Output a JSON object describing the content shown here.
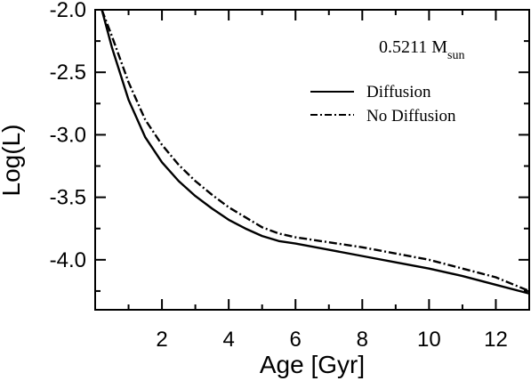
{
  "chart_data": {
    "type": "line",
    "xlabel": "Age [Gyr]",
    "ylabel": "Log(L)",
    "xlim": [
      0,
      13
    ],
    "ylim": [
      -4.4,
      -2.0
    ],
    "x_ticks": [
      2,
      4,
      6,
      8,
      10,
      12
    ],
    "y_ticks": [
      -2.0,
      -2.5,
      -3.0,
      -3.5,
      -4.0
    ],
    "x_tick_labels": [
      "2",
      "4",
      "6",
      "8",
      "10",
      "12"
    ],
    "y_tick_labels": [
      "-2.0",
      "-2.5",
      "-3.0",
      "-3.5",
      "-4.0"
    ],
    "annotation": {
      "mass": "0.5211 M",
      "subscript": "sun"
    },
    "legend_position": "top-right",
    "grid": false,
    "series": [
      {
        "name": "Diffusion",
        "style": "solid",
        "color": "#000000",
        "x": [
          0.2,
          0.5,
          1.0,
          1.5,
          2.0,
          2.5,
          3.0,
          3.5,
          4.0,
          4.5,
          5.0,
          5.5,
          6.0,
          7.0,
          8.0,
          9.0,
          10.0,
          11.0,
          12.0,
          13.0
        ],
        "y": [
          -2.0,
          -2.3,
          -2.72,
          -3.02,
          -3.22,
          -3.37,
          -3.49,
          -3.59,
          -3.68,
          -3.75,
          -3.81,
          -3.85,
          -3.87,
          -3.92,
          -3.97,
          -4.02,
          -4.07,
          -4.13,
          -4.2,
          -4.27
        ]
      },
      {
        "name": "No Diffusion",
        "style": "dashdot",
        "color": "#000000",
        "x": [
          0.2,
          0.5,
          1.0,
          1.5,
          2.0,
          2.5,
          3.0,
          3.5,
          4.0,
          4.5,
          5.0,
          5.5,
          6.0,
          7.0,
          8.0,
          9.0,
          10.0,
          11.0,
          12.0,
          13.0
        ],
        "y": [
          -2.0,
          -2.21,
          -2.58,
          -2.88,
          -3.08,
          -3.24,
          -3.37,
          -3.48,
          -3.58,
          -3.66,
          -3.74,
          -3.79,
          -3.82,
          -3.86,
          -3.9,
          -3.95,
          -4.0,
          -4.07,
          -4.14,
          -4.25
        ]
      }
    ]
  }
}
